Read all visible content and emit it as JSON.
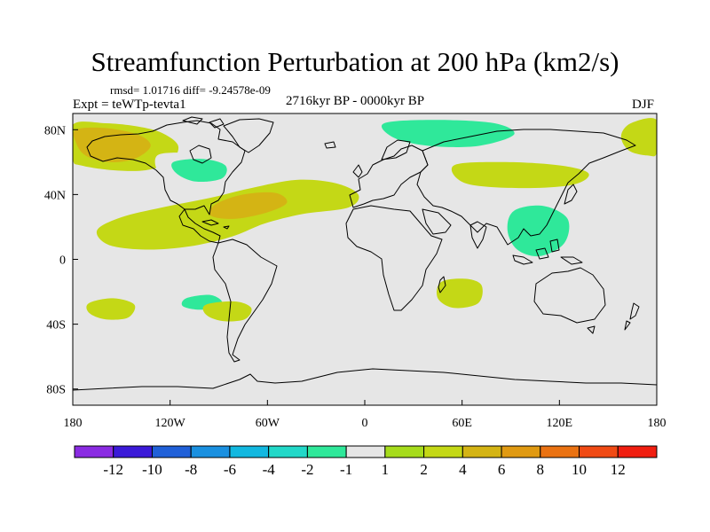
{
  "chart_data": {
    "type": "contour-map",
    "title": "Streamfunction Perturbation at 200 hPa (km2/s)",
    "stats_label": "rmsd= 1.01716 diff= -9.24578e-09",
    "experiment_label": "Expt = teWTp-tevta1",
    "period_label": "2716kyr BP - 0000kyr BP",
    "season_label": "DJF",
    "x_ticks": [
      {
        "value": -180,
        "label": "180"
      },
      {
        "value": -120,
        "label": "120W"
      },
      {
        "value": -60,
        "label": "60W"
      },
      {
        "value": 0,
        "label": "0"
      },
      {
        "value": 60,
        "label": "60E"
      },
      {
        "value": 120,
        "label": "120E"
      },
      {
        "value": 180,
        "label": "180"
      }
    ],
    "y_ticks": [
      {
        "value": 80,
        "label": "80N"
      },
      {
        "value": 40,
        "label": "40N"
      },
      {
        "value": 0,
        "label": "0"
      },
      {
        "value": -40,
        "label": "40S"
      },
      {
        "value": -80,
        "label": "80S"
      }
    ],
    "xlim": [
      -180,
      180
    ],
    "ylim": [
      -90,
      90
    ],
    "colorbar": {
      "colors": [
        "#8a2be2",
        "#3b1ad8",
        "#2060d8",
        "#1a90e0",
        "#12b8e0",
        "#22d8c8",
        "#2fe89a",
        "#e6e6e6",
        "#a6dc1c",
        "#c4d816",
        "#d4b414",
        "#e09a12",
        "#ea7212",
        "#f04a14",
        "#f01e10"
      ],
      "labels": [
        "-12",
        "-10",
        "-8",
        "-6",
        "-4",
        "-2",
        "-1",
        "1",
        "2",
        "4",
        "6",
        "8",
        "10",
        "12"
      ]
    },
    "fields": [
      {
        "name": "north-pacific-positive",
        "value": 2,
        "pts": [
          [
            -180,
            83
          ],
          [
            -160,
            84
          ],
          [
            -140,
            82
          ],
          [
            -125,
            78
          ],
          [
            -115,
            70
          ],
          [
            -120,
            60
          ],
          [
            -135,
            55
          ],
          [
            -155,
            55
          ],
          [
            -175,
            58
          ],
          [
            -180,
            62
          ]
        ]
      },
      {
        "name": "north-pacific-core",
        "value": 4,
        "pts": [
          [
            -178,
            80
          ],
          [
            -160,
            81
          ],
          [
            -140,
            77
          ],
          [
            -132,
            70
          ],
          [
            -142,
            62
          ],
          [
            -158,
            60
          ],
          [
            -172,
            64
          ],
          [
            -178,
            72
          ]
        ]
      },
      {
        "name": "north-america-negative",
        "value": -1,
        "pts": [
          [
            -128,
            64
          ],
          [
            -110,
            66
          ],
          [
            -90,
            66
          ],
          [
            -78,
            62
          ],
          [
            -75,
            52
          ],
          [
            -90,
            44
          ],
          [
            -110,
            44
          ],
          [
            -126,
            52
          ]
        ]
      },
      {
        "name": "north-america-core",
        "value": -2,
        "pts": [
          [
            -118,
            60
          ],
          [
            -100,
            62
          ],
          [
            -86,
            58
          ],
          [
            -88,
            50
          ],
          [
            -104,
            48
          ],
          [
            -116,
            53
          ]
        ]
      },
      {
        "name": "dateline-left-negative",
        "value": -1,
        "pts": [
          [
            -180,
            38
          ],
          [
            -166,
            38
          ],
          [
            -160,
            30
          ],
          [
            -168,
            22
          ],
          [
            -180,
            22
          ]
        ]
      },
      {
        "name": "dateline-right-negative",
        "value": -1,
        "pts": [
          [
            180,
            38
          ],
          [
            168,
            38
          ],
          [
            164,
            30
          ],
          [
            170,
            22
          ],
          [
            180,
            22
          ]
        ]
      },
      {
        "name": "atlantic-positive-band",
        "value": 2,
        "pts": [
          [
            -165,
            18
          ],
          [
            -150,
            26
          ],
          [
            -125,
            32
          ],
          [
            -95,
            38
          ],
          [
            -70,
            44
          ],
          [
            -42,
            49
          ],
          [
            -18,
            47
          ],
          [
            -4,
            40
          ],
          [
            -10,
            32
          ],
          [
            -38,
            28
          ],
          [
            -62,
            22
          ],
          [
            -82,
            14
          ],
          [
            -108,
            8
          ],
          [
            -135,
            6
          ],
          [
            -158,
            9
          ]
        ]
      },
      {
        "name": "atlantic-core",
        "value": 4,
        "pts": [
          [
            -92,
            34
          ],
          [
            -75,
            40
          ],
          [
            -55,
            41
          ],
          [
            -48,
            35
          ],
          [
            -60,
            29
          ],
          [
            -80,
            25
          ],
          [
            -95,
            27
          ]
        ]
      },
      {
        "name": "eurasia-negative",
        "value": -1,
        "pts": [
          [
            -18,
            88
          ],
          [
            20,
            89
          ],
          [
            65,
            88
          ],
          [
            100,
            86
          ],
          [
            118,
            80
          ],
          [
            112,
            72
          ],
          [
            85,
            66
          ],
          [
            50,
            65
          ],
          [
            15,
            69
          ],
          [
            -10,
            72
          ],
          [
            -22,
            80
          ]
        ]
      },
      {
        "name": "eurasia-core",
        "value": -2,
        "pts": [
          [
            12,
            84
          ],
          [
            45,
            86
          ],
          [
            80,
            84
          ],
          [
            92,
            77
          ],
          [
            70,
            70
          ],
          [
            40,
            70
          ],
          [
            18,
            75
          ]
        ]
      },
      {
        "name": "siberia-positive",
        "value": 2,
        "pts": [
          [
            55,
            58
          ],
          [
            85,
            60
          ],
          [
            120,
            58
          ],
          [
            138,
            53
          ],
          [
            128,
            46
          ],
          [
            95,
            44
          ],
          [
            62,
            47
          ]
        ]
      },
      {
        "name": "northeast-pacific-positive",
        "value": 2,
        "pts": [
          [
            180,
            86
          ],
          [
            164,
            84
          ],
          [
            158,
            76
          ],
          [
            163,
            67
          ],
          [
            175,
            64
          ],
          [
            180,
            66
          ]
        ]
      },
      {
        "name": "asia-negative",
        "value": -1,
        "pts": [
          [
            78,
            36
          ],
          [
            95,
            43
          ],
          [
            112,
            42
          ],
          [
            124,
            38
          ],
          [
            138,
            30
          ],
          [
            136,
            10
          ],
          [
            125,
            -3
          ],
          [
            110,
            -8
          ],
          [
            92,
            -6
          ],
          [
            80,
            5
          ],
          [
            74,
            20
          ]
        ]
      },
      {
        "name": "asia-core",
        "value": -2,
        "pts": [
          [
            92,
            30
          ],
          [
            110,
            33
          ],
          [
            125,
            25
          ],
          [
            123,
            10
          ],
          [
            108,
            2
          ],
          [
            94,
            6
          ],
          [
            88,
            18
          ]
        ]
      },
      {
        "name": "west-africa-negative",
        "value": -1,
        "pts": [
          [
            -32,
            13
          ],
          [
            -25,
            15
          ],
          [
            -20,
            12
          ],
          [
            -25,
            8
          ],
          [
            -32,
            9
          ]
        ]
      },
      {
        "name": "south-pacific-negative",
        "value": -1,
        "pts": [
          [
            -142,
            -6
          ],
          [
            -118,
            -8
          ],
          [
            -92,
            -10
          ],
          [
            -75,
            -14
          ],
          [
            -72,
            -24
          ],
          [
            -90,
            -28
          ],
          [
            -108,
            -34
          ],
          [
            -128,
            -34
          ],
          [
            -148,
            -30
          ],
          [
            -152,
            -18
          ]
        ]
      },
      {
        "name": "south-pacific-core",
        "value": -2,
        "pts": [
          [
            -110,
            -24
          ],
          [
            -95,
            -22
          ],
          [
            -88,
            -27
          ],
          [
            -100,
            -31
          ],
          [
            -112,
            -29
          ]
        ]
      },
      {
        "name": "southwest-pacific-positive",
        "value": 2,
        "pts": [
          [
            -170,
            -27
          ],
          [
            -155,
            -24
          ],
          [
            -142,
            -28
          ],
          [
            -146,
            -36
          ],
          [
            -160,
            -37
          ],
          [
            -170,
            -33
          ]
        ]
      },
      {
        "name": "southeast-pacific-positive",
        "value": 2,
        "pts": [
          [
            -98,
            -28
          ],
          [
            -80,
            -26
          ],
          [
            -70,
            -30
          ],
          [
            -74,
            -37
          ],
          [
            -88,
            -38
          ],
          [
            -98,
            -34
          ]
        ]
      },
      {
        "name": "south-indian-positive",
        "value": 2,
        "pts": [
          [
            47,
            -14
          ],
          [
            62,
            -12
          ],
          [
            72,
            -16
          ],
          [
            70,
            -27
          ],
          [
            55,
            -30
          ],
          [
            45,
            -24
          ]
        ]
      },
      {
        "name": "south-atlantic-negative",
        "value": -1,
        "pts": [
          [
            -18,
            -52
          ],
          [
            -10,
            -51
          ],
          [
            -6,
            -55
          ],
          [
            -12,
            -58
          ],
          [
            -18,
            -57
          ]
        ]
      },
      {
        "name": "southern-ocean-negative",
        "value": -1,
        "pts": [
          [
            -150,
            -55
          ],
          [
            -146,
            -54
          ],
          [
            -144,
            -57
          ],
          [
            -148,
            -58
          ]
        ]
      }
    ]
  }
}
